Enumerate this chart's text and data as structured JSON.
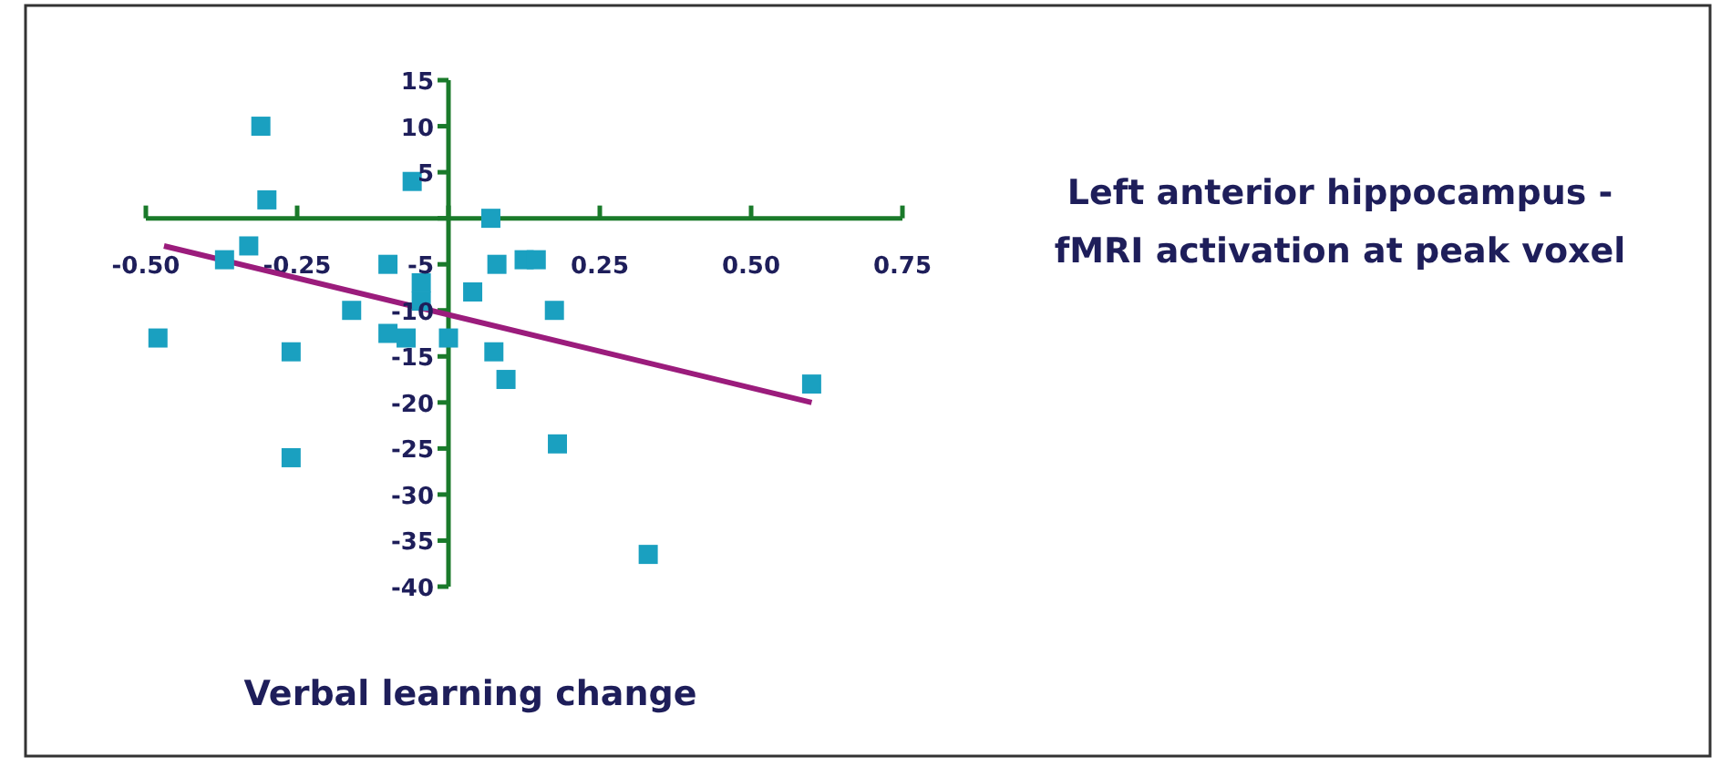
{
  "chart_data": {
    "type": "scatter",
    "xlabel": "Verbal learning change",
    "ylabel": "Left anterior hippocampus - fMRI activation at peak voxel",
    "xlim": [
      -0.5,
      0.75
    ],
    "ylim": [
      -40,
      15
    ],
    "xticks": [
      {
        "value": -0.5,
        "label": "-0.50"
      },
      {
        "value": -0.25,
        "label": "-0.25"
      },
      {
        "value": 0,
        "label": null
      },
      0.25,
      {
        "value": 0.5,
        "label": "0.50"
      },
      0.75
    ],
    "yticks": [
      15,
      10,
      5,
      {
        "value": 0,
        "label": null
      },
      -5,
      -10,
      -15,
      -20,
      -25,
      -30,
      -35,
      -40
    ],
    "series": [
      {
        "marker": "square",
        "color": "#1aa0c0",
        "x": [
          -0.31,
          -0.3,
          -0.06,
          0.07,
          -0.37,
          -0.33,
          -0.48,
          -0.26,
          -0.16,
          -0.1,
          -0.045,
          -0.045,
          -0.1,
          -0.07,
          0.0,
          0.04,
          0.08,
          0.075,
          0.095,
          0.125,
          0.145,
          0.175,
          0.18,
          0.33,
          0.6,
          -0.26
        ],
        "values": [
          10,
          2,
          4,
          0,
          -4.5,
          -3,
          -13,
          -14.5,
          -10,
          -5,
          -7,
          -9,
          -12.5,
          -13,
          -13,
          -8,
          -5,
          -14.5,
          -17.5,
          -4.5,
          -4.5,
          -10,
          -24.5,
          -36.5,
          -18,
          -26
        ]
      },
      {
        "type": "line",
        "color": "#9b1c7c",
        "x": [
          -0.47,
          0.6
        ],
        "values": [
          -3,
          -20
        ]
      }
    ]
  }
}
